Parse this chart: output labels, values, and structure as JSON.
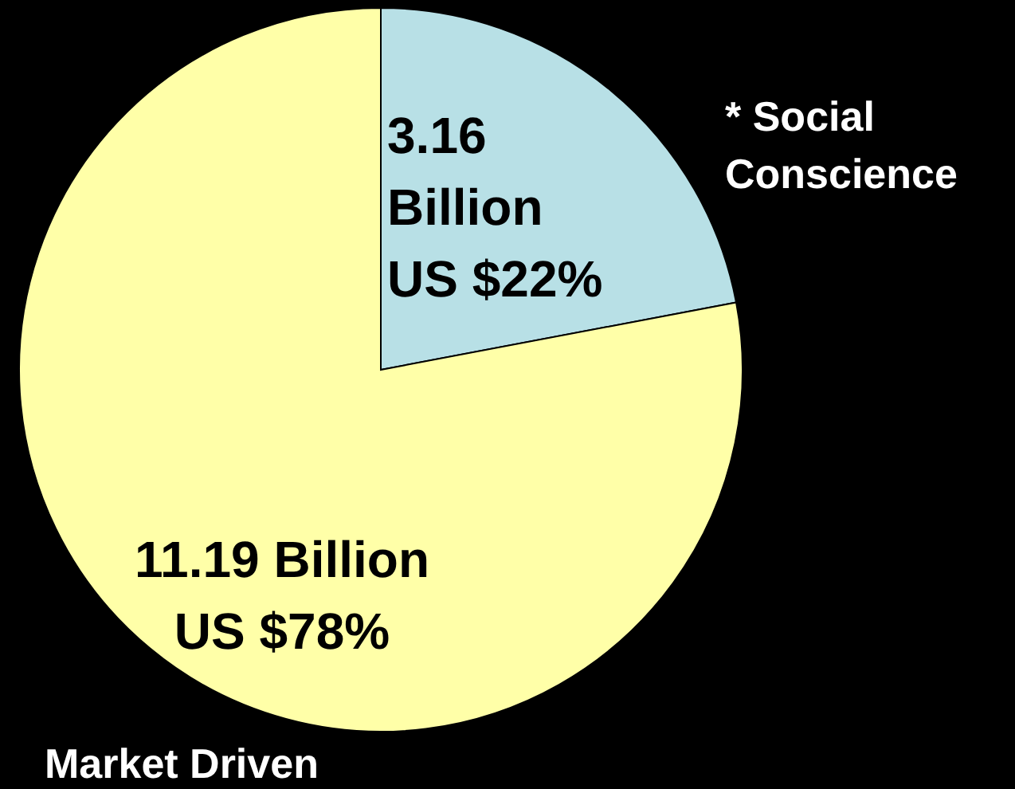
{
  "chart_data": {
    "type": "pie",
    "categories": [
      "* Social Conscience",
      "Market Driven"
    ],
    "values": [
      3.16,
      11.19
    ],
    "colors": [
      "#b8e0e6",
      "#ffffa8"
    ],
    "value_labels": [
      "3.16\nBillion\nUS $22%",
      "11.19 Billion\nUS $78%"
    ],
    "legend": false
  }
}
